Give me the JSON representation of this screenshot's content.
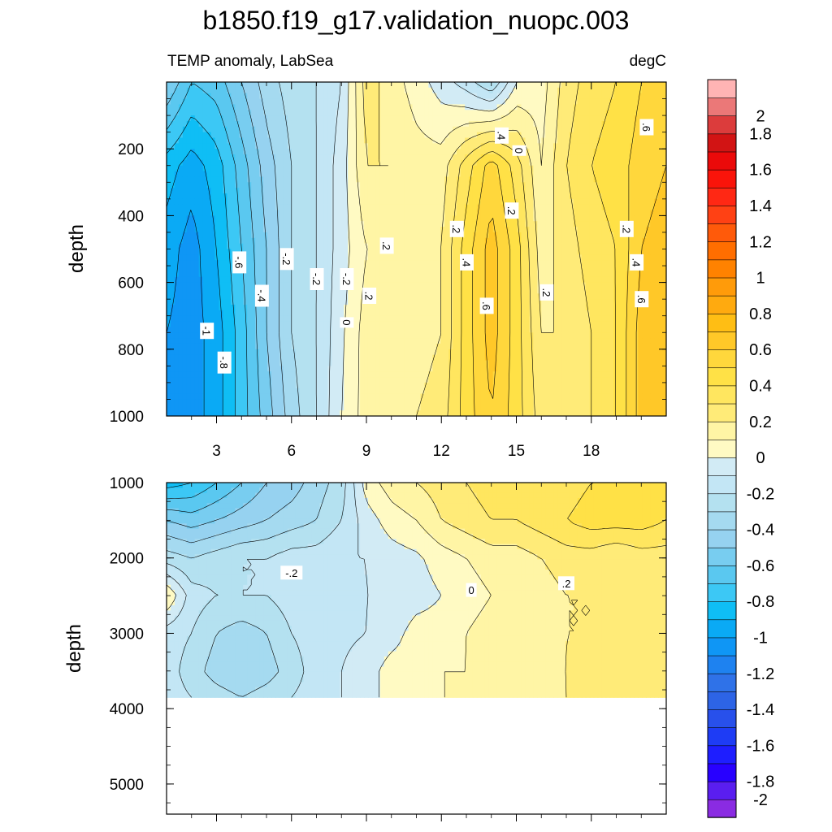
{
  "header": {
    "title": "b1850.f19_g17.validation_nuopc.003",
    "left_subtitle": "TEMP anomaly, LabSea",
    "right_subtitle": "degC"
  },
  "chart_data": [
    {
      "type": "heatmap",
      "panel": "upper",
      "title": "b1850.f19_g17.validation_nuopc.003",
      "subtitle_left": "TEMP anomaly, LabSea",
      "subtitle_right": "degC",
      "xlabel": "",
      "ylabel": "depth",
      "xlim": [
        1,
        21
      ],
      "ylim": [
        1000,
        0
      ],
      "x_ticks": [
        3,
        6,
        9,
        12,
        15,
        18
      ],
      "x_tick_labels": [
        "3",
        "6",
        "9",
        "12",
        "15",
        "18"
      ],
      "y_ticks": [
        200,
        400,
        600,
        800,
        1000
      ],
      "y_tick_labels": [
        "200",
        "400",
        "600",
        "800",
        "1000"
      ],
      "x": [
        1,
        2,
        3,
        4,
        5,
        6,
        7,
        8,
        9,
        10,
        11,
        12,
        13,
        14,
        15,
        16,
        17,
        18,
        19,
        20,
        21
      ],
      "y": [
        0,
        250,
        500,
        750,
        1000
      ],
      "z": [
        [
          -0.5,
          -0.7,
          -0.65,
          -0.5,
          -0.35,
          -0.25,
          -0.2,
          -0.1,
          0.25,
          0.15,
          0.05,
          -0.05,
          -0.15,
          -0.3,
          0.0,
          0.05,
          0.25,
          0.35,
          0.4,
          0.5,
          0.55
        ],
        [
          -0.85,
          -0.95,
          -0.85,
          -0.65,
          -0.45,
          -0.3,
          -0.2,
          -0.05,
          0.2,
          0.2,
          0.15,
          0.15,
          0.35,
          0.55,
          0.35,
          0.1,
          0.3,
          0.4,
          0.45,
          0.55,
          0.6
        ],
        [
          -0.95,
          -1.05,
          -0.9,
          -0.7,
          -0.5,
          -0.3,
          -0.2,
          -0.05,
          0.1,
          0.15,
          0.15,
          0.2,
          0.45,
          0.65,
          0.45,
          0.15,
          0.25,
          0.35,
          0.4,
          0.6,
          0.65
        ],
        [
          -1.0,
          -1.05,
          -0.95,
          -0.75,
          -0.5,
          -0.3,
          -0.2,
          -0.02,
          0.15,
          0.15,
          0.15,
          0.2,
          0.45,
          0.65,
          0.45,
          0.2,
          0.2,
          0.3,
          0.4,
          0.65,
          0.7
        ],
        [
          -1.0,
          -1.05,
          -0.95,
          -0.75,
          -0.55,
          -0.35,
          -0.2,
          0.0,
          0.15,
          0.15,
          0.2,
          0.25,
          0.45,
          0.6,
          0.45,
          0.25,
          0.2,
          0.3,
          0.4,
          0.65,
          0.7
        ]
      ],
      "contour_labels": [
        {
          "text": "-1",
          "x": 2.6,
          "y": 745
        },
        {
          "text": "-.8",
          "x": 3.3,
          "y": 840
        },
        {
          "text": "-.6",
          "x": 3.9,
          "y": 540
        },
        {
          "text": "-.4",
          "x": 4.8,
          "y": 640
        },
        {
          "text": "-.2",
          "x": 5.8,
          "y": 530
        },
        {
          "text": "-.2",
          "x": 7.0,
          "y": 590
        },
        {
          "text": "0",
          "x": 8.2,
          "y": 720
        },
        {
          "text": "-.2",
          "x": 8.2,
          "y": 590
        },
        {
          "text": ".2",
          "x": 9.1,
          "y": 640
        },
        {
          "text": ".2",
          "x": 9.8,
          "y": 490
        },
        {
          "text": ".2",
          "x": 12.6,
          "y": 440
        },
        {
          "text": ".4",
          "x": 13.0,
          "y": 540
        },
        {
          "text": ".6",
          "x": 13.8,
          "y": 670
        },
        {
          "text": ".4",
          "x": 14.4,
          "y": 160
        },
        {
          "text": "0",
          "x": 15.1,
          "y": 205
        },
        {
          "text": ".2",
          "x": 14.8,
          "y": 385
        },
        {
          "text": ".2",
          "x": 16.2,
          "y": 630
        },
        {
          "text": ".2",
          "x": 19.4,
          "y": 440
        },
        {
          "text": ".4",
          "x": 19.8,
          "y": 540
        },
        {
          "text": ".6",
          "x": 20.0,
          "y": 650
        },
        {
          "text": ".6",
          "x": 20.2,
          "y": 135
        }
      ]
    },
    {
      "type": "heatmap",
      "panel": "lower",
      "xlabel": "",
      "ylabel": "depth",
      "xlim": [
        1,
        21
      ],
      "ylim": [
        5400,
        1000
      ],
      "y_ticks": [
        1000,
        2000,
        3000,
        4000,
        5000
      ],
      "y_tick_labels": [
        "1000",
        "2000",
        "3000",
        "4000",
        "5000"
      ],
      "data_max_depth": 3850,
      "x": [
        1,
        2,
        3,
        4,
        5,
        6,
        7,
        8,
        9,
        10,
        11,
        12,
        13,
        14,
        15,
        16,
        17,
        18,
        19,
        20,
        21
      ],
      "y": [
        1000,
        1500,
        2000,
        2500,
        3000,
        3500,
        3850
      ],
      "z": [
        [
          -0.85,
          -0.8,
          -0.7,
          -0.6,
          -0.5,
          -0.45,
          -0.35,
          -0.25,
          0.05,
          0.15,
          0.2,
          0.25,
          0.3,
          0.35,
          0.35,
          0.3,
          0.35,
          0.4,
          0.4,
          0.4,
          0.45
        ],
        [
          -0.5,
          -0.55,
          -0.5,
          -0.45,
          -0.4,
          -0.35,
          -0.3,
          -0.2,
          -0.05,
          0.05,
          0.1,
          0.2,
          0.25,
          0.3,
          0.3,
          0.35,
          0.4,
          0.45,
          0.45,
          0.45,
          0.4
        ],
        [
          -0.25,
          -0.3,
          -0.25,
          -0.2,
          -0.2,
          -0.15,
          -0.15,
          -0.1,
          -0.1,
          -0.05,
          -0.02,
          0.05,
          0.1,
          0.15,
          0.15,
          0.2,
          0.25,
          0.25,
          0.2,
          0.25,
          0.25
        ],
        [
          0.1,
          -0.15,
          -0.2,
          -0.2,
          -0.2,
          -0.15,
          -0.15,
          -0.15,
          -0.1,
          -0.1,
          -0.05,
          0.0,
          0.05,
          0.1,
          0.15,
          0.15,
          0.2,
          0.2,
          0.2,
          0.2,
          0.25
        ],
        [
          -0.15,
          -0.2,
          -0.3,
          -0.35,
          -0.3,
          -0.2,
          -0.15,
          -0.12,
          -0.1,
          -0.05,
          0.05,
          0.05,
          0.1,
          0.15,
          0.15,
          0.15,
          0.2,
          0.2,
          0.25,
          0.25,
          0.25
        ],
        [
          -0.15,
          -0.25,
          -0.35,
          -0.4,
          -0.35,
          -0.25,
          -0.15,
          -0.1,
          -0.05,
          0.05,
          0.05,
          0.1,
          0.1,
          0.15,
          0.15,
          0.2,
          0.2,
          0.25,
          0.25,
          0.25,
          0.25
        ],
        [
          -0.15,
          -0.2,
          -0.25,
          -0.3,
          -0.25,
          -0.2,
          -0.15,
          -0.1,
          -0.05,
          0.05,
          0.05,
          0.1,
          0.1,
          0.15,
          0.15,
          0.15,
          0.2,
          0.25,
          0.25,
          0.25,
          0.25
        ]
      ],
      "contour_labels": [
        {
          "text": "-.2",
          "x": 6.0,
          "y": 2200
        },
        {
          "text": "0",
          "x": 13.2,
          "y": 2430
        },
        {
          "text": ".2",
          "x": 17.0,
          "y": 2340
        }
      ]
    }
  ],
  "colorbar": {
    "levels": [
      -2.0,
      -1.9,
      -1.8,
      -1.7,
      -1.6,
      -1.5,
      -1.4,
      -1.3,
      -1.2,
      -1.1,
      -1.0,
      -0.9,
      -0.8,
      -0.7,
      -0.6,
      -0.5,
      -0.4,
      -0.3,
      -0.2,
      -0.1,
      0.0,
      0.1,
      0.2,
      0.3,
      0.4,
      0.5,
      0.6,
      0.7,
      0.8,
      0.9,
      1.0,
      1.1,
      1.2,
      1.3,
      1.4,
      1.5,
      1.6,
      1.7,
      1.8,
      1.9,
      2.0
    ],
    "labels": [
      "2",
      "1.8",
      "1.6",
      "1.4",
      "1.2",
      "1",
      "0.8",
      "0.6",
      "0.4",
      "0.2",
      "0",
      "-0.2",
      "-0.4",
      "-0.6",
      "-0.8",
      "-1",
      "-1.2",
      "-1.4",
      "-1.6",
      "-1.8",
      "-2"
    ],
    "colors": [
      "#8a2be2",
      "#5a1ef0",
      "#2800ff",
      "#1e1eff",
      "#1e3cf5",
      "#2850eb",
      "#2d64e6",
      "#2f72e8",
      "#1e82f0",
      "#0f96f5",
      "#0aaaf5",
      "#0fbef5",
      "#3cc8f5",
      "#5ac8f0",
      "#78cdf0",
      "#96d2f0",
      "#a5daf0",
      "#b4e1f0",
      "#c3e6f5",
      "#d2ebf5",
      "#fffac3",
      "#fff5a5",
      "#ffeb78",
      "#ffe65f",
      "#ffe146",
      "#ffd73c",
      "#ffc828",
      "#ffbe14",
      "#ffaa0f",
      "#ff9b0a",
      "#ff8200",
      "#ff6e00",
      "#ff5a0a",
      "#ff4114",
      "#ff2814",
      "#fa140a",
      "#eb0a0a",
      "#d21414",
      "#dc3c3c",
      "#eb7878",
      "#ffb4b4"
    ]
  }
}
